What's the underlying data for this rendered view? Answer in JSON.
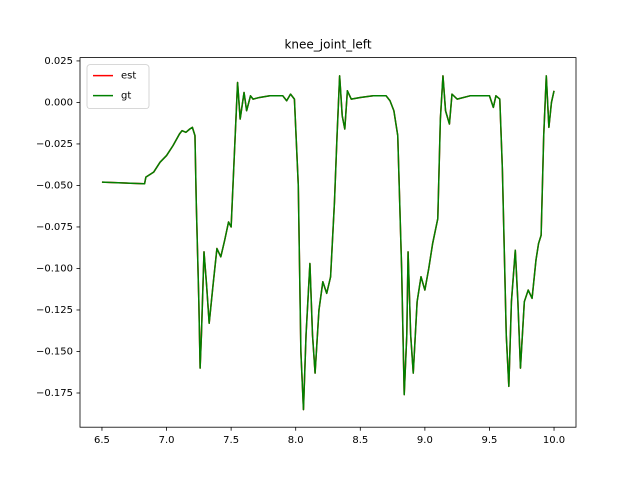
{
  "chart_data": {
    "type": "line",
    "title": "knee_joint_left",
    "x": [
      6.5,
      6.83,
      6.84,
      6.9,
      6.95,
      7.0,
      7.05,
      7.1,
      7.12,
      7.15,
      7.18,
      7.2,
      7.22,
      7.23,
      7.25,
      7.26,
      7.27,
      7.29,
      7.31,
      7.33,
      7.36,
      7.39,
      7.42,
      7.45,
      7.48,
      7.5,
      7.52,
      7.55,
      7.57,
      7.6,
      7.62,
      7.65,
      7.67,
      7.72,
      7.8,
      7.9,
      7.93,
      7.96,
      7.99,
      8.02,
      8.04,
      8.06,
      8.08,
      8.11,
      8.13,
      8.15,
      8.18,
      8.21,
      8.24,
      8.27,
      8.3,
      8.32,
      8.34,
      8.36,
      8.38,
      8.4,
      8.43,
      8.5,
      8.6,
      8.7,
      8.73,
      8.76,
      8.79,
      8.82,
      8.84,
      8.86,
      8.87,
      8.89,
      8.91,
      8.94,
      8.97,
      9.0,
      9.03,
      9.06,
      9.1,
      9.12,
      9.14,
      9.16,
      9.19,
      9.21,
      9.25,
      9.35,
      9.5,
      9.53,
      9.55,
      9.58,
      9.6,
      9.63,
      9.65,
      9.67,
      9.7,
      9.72,
      9.74,
      9.77,
      9.8,
      9.83,
      9.86,
      9.88,
      9.9,
      9.92,
      9.94,
      9.96,
      9.98,
      10.0
    ],
    "series": [
      {
        "name": "est",
        "color": "#ff0000",
        "values": [
          -0.048,
          -0.049,
          -0.045,
          -0.042,
          -0.036,
          -0.032,
          -0.026,
          -0.019,
          -0.017,
          -0.018,
          -0.016,
          -0.015,
          -0.02,
          -0.06,
          -0.12,
          -0.16,
          -0.14,
          -0.09,
          -0.11,
          -0.133,
          -0.11,
          -0.088,
          -0.093,
          -0.083,
          -0.072,
          -0.075,
          -0.04,
          0.012,
          -0.01,
          0.006,
          -0.005,
          0.004,
          0.002,
          0.003,
          0.004,
          0.004,
          0.001,
          0.005,
          0.002,
          -0.05,
          -0.15,
          -0.185,
          -0.14,
          -0.097,
          -0.14,
          -0.163,
          -0.125,
          -0.108,
          -0.115,
          -0.105,
          -0.06,
          -0.02,
          0.016,
          -0.008,
          -0.016,
          0.007,
          0.002,
          0.003,
          0.004,
          0.004,
          0.001,
          -0.005,
          -0.02,
          -0.1,
          -0.176,
          -0.14,
          -0.09,
          -0.14,
          -0.163,
          -0.12,
          -0.105,
          -0.113,
          -0.1,
          -0.085,
          -0.07,
          -0.01,
          0.016,
          -0.005,
          -0.013,
          0.005,
          0.002,
          0.004,
          0.004,
          -0.003,
          0.004,
          0.002,
          -0.04,
          -0.14,
          -0.171,
          -0.12,
          -0.089,
          -0.12,
          -0.16,
          -0.12,
          -0.113,
          -0.118,
          -0.095,
          -0.085,
          -0.08,
          -0.02,
          0.016,
          -0.015,
          0.0,
          0.007
        ]
      },
      {
        "name": "gt",
        "color": "#008000",
        "values": [
          -0.048,
          -0.049,
          -0.045,
          -0.042,
          -0.036,
          -0.032,
          -0.026,
          -0.019,
          -0.017,
          -0.018,
          -0.016,
          -0.015,
          -0.02,
          -0.06,
          -0.12,
          -0.16,
          -0.14,
          -0.09,
          -0.11,
          -0.133,
          -0.11,
          -0.088,
          -0.093,
          -0.083,
          -0.072,
          -0.075,
          -0.04,
          0.012,
          -0.01,
          0.006,
          -0.005,
          0.004,
          0.002,
          0.003,
          0.004,
          0.004,
          0.001,
          0.005,
          0.002,
          -0.05,
          -0.15,
          -0.185,
          -0.14,
          -0.097,
          -0.14,
          -0.163,
          -0.125,
          -0.108,
          -0.115,
          -0.105,
          -0.06,
          -0.02,
          0.016,
          -0.008,
          -0.016,
          0.007,
          0.002,
          0.003,
          0.004,
          0.004,
          0.001,
          -0.005,
          -0.02,
          -0.1,
          -0.176,
          -0.14,
          -0.09,
          -0.14,
          -0.163,
          -0.12,
          -0.105,
          -0.113,
          -0.1,
          -0.085,
          -0.07,
          -0.01,
          0.016,
          -0.005,
          -0.013,
          0.005,
          0.002,
          0.004,
          0.004,
          -0.003,
          0.004,
          0.002,
          -0.04,
          -0.14,
          -0.171,
          -0.12,
          -0.089,
          -0.12,
          -0.16,
          -0.12,
          -0.113,
          -0.118,
          -0.095,
          -0.085,
          -0.08,
          -0.02,
          0.016,
          -0.015,
          0.0,
          0.007
        ]
      }
    ],
    "xlim": [
      6.33,
      10.17
    ],
    "ylim": [
      -0.1956,
      0.027
    ],
    "xticks": [
      {
        "value": 6.5,
        "label": "6.5"
      },
      {
        "value": 7,
        "label": "7.0"
      },
      {
        "value": 7.5,
        "label": "7.5"
      },
      {
        "value": 8,
        "label": "8.0"
      },
      {
        "value": 8.5,
        "label": "8.5"
      },
      {
        "value": 9,
        "label": "9.0"
      },
      {
        "value": 9.5,
        "label": "9.5"
      },
      {
        "value": 10,
        "label": "10.0"
      }
    ],
    "yticks": [
      {
        "value": 0.025,
        "label": "0.025"
      },
      {
        "value": 0,
        "label": "0.000"
      },
      {
        "value": -0.025,
        "label": "−0.025"
      },
      {
        "value": -0.05,
        "label": "−0.050"
      },
      {
        "value": -0.075,
        "label": "−0.075"
      },
      {
        "value": -0.1,
        "label": "−0.100"
      },
      {
        "value": -0.125,
        "label": "−0.125"
      },
      {
        "value": -0.15,
        "label": "−0.150"
      },
      {
        "value": -0.175,
        "label": "−0.175"
      }
    ],
    "grid": false,
    "legend": "upper-left"
  }
}
